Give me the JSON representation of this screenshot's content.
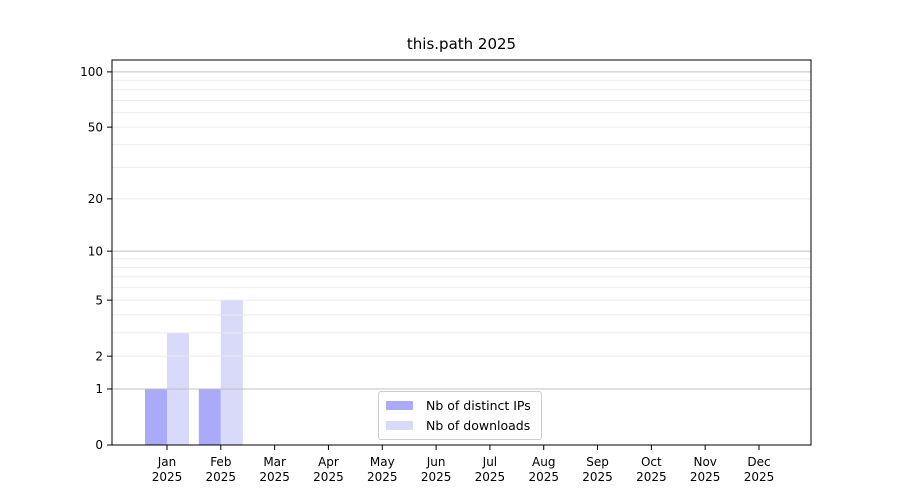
{
  "title": "this.path 2025",
  "chart_data": {
    "type": "bar",
    "title": "this.path 2025",
    "categories": [
      "Jan",
      "Feb",
      "Mar",
      "Apr",
      "May",
      "Jun",
      "Jul",
      "Aug",
      "Sep",
      "Oct",
      "Nov",
      "Dec"
    ],
    "x_year_label": "2025",
    "series": [
      {
        "name": "Nb of distinct IPs",
        "color": "#aaaaf8",
        "values": [
          1,
          1,
          0,
          0,
          0,
          0,
          0,
          0,
          0,
          0,
          0,
          0
        ]
      },
      {
        "name": "Nb of downloads",
        "color": "#d9d9f9",
        "values": [
          3,
          5,
          0,
          0,
          0,
          0,
          0,
          0,
          0,
          0,
          0,
          0
        ]
      }
    ],
    "xlabel": "",
    "ylabel": "",
    "y_axis": {
      "scale": "log10(1+value)",
      "tick_values": [
        0,
        1,
        2,
        5,
        10,
        20,
        50,
        100
      ],
      "major_gridlines": [
        1,
        10,
        100
      ],
      "minor_gridlines": [
        2,
        3,
        4,
        5,
        6,
        7,
        8,
        9,
        20,
        30,
        40,
        50,
        60,
        70,
        80,
        90
      ],
      "ylim": [
        0,
        116
      ],
      "grid": true
    },
    "legend_position": "lower center"
  },
  "legend": {
    "items": [
      {
        "label": "Nb of distinct IPs",
        "color": "#aaaaf8"
      },
      {
        "label": "Nb of downloads",
        "color": "#d9d9f9"
      }
    ]
  },
  "styles": {
    "grid_minor_color": "#ececec",
    "grid_major_color": "#c0c0c0",
    "axis_color": "#000000",
    "text_color": "#000000",
    "legend_border_color": "#cccccc"
  }
}
